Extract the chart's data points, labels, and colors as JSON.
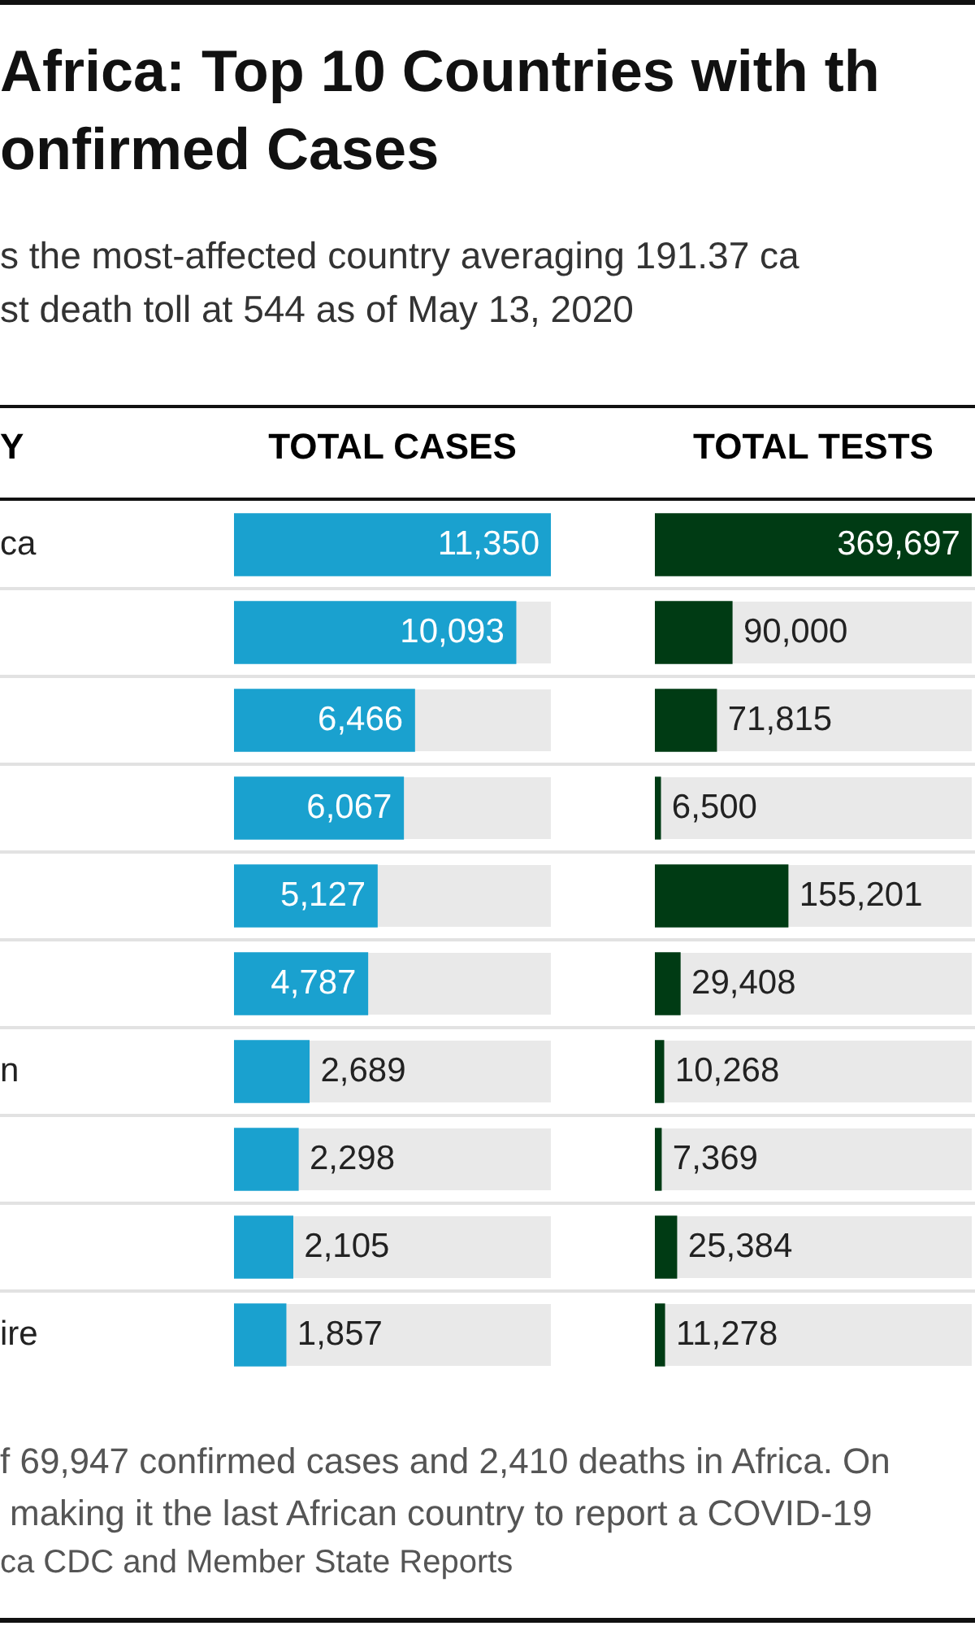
{
  "chart_data": [
    {
      "type": "other",
      "title": "Africa: Top 10 Countries with th\nonfirmed Cases",
      "subtitle": "s the most-affected country averaging 191.37 ca\nst death toll at 544 as of May 13, 2020",
      "annotations": [
        "f 69,947 confirmed cases and 2,410 deaths in Africa. On",
        "making it the last African country to report a COVID-19",
        "ca CDC and Member State Reports"
      ]
    },
    {
      "type": "bar",
      "orientation": "horizontal",
      "title": "TOTAL CASES",
      "ylabel": "Y",
      "categories": [
        "ca",
        null,
        null,
        null,
        null,
        null,
        "n",
        null,
        null,
        "ire"
      ],
      "values": [
        11350,
        10093,
        6466,
        6067,
        5127,
        4787,
        2689,
        2298,
        2105,
        1857
      ],
      "value_labels": [
        "11,350",
        "10,093",
        "6,466",
        "6,067",
        "5,127",
        "4,787",
        "2,689",
        "2,298",
        "2,105",
        "1,857"
      ],
      "color": "#1aa1cf"
    },
    {
      "type": "bar",
      "orientation": "horizontal",
      "title": "TOTAL TESTS",
      "categories": [
        null,
        null,
        null,
        null,
        null,
        null,
        null,
        null,
        null,
        null
      ],
      "values": [
        369697,
        90000,
        71815,
        6500,
        155201,
        29408,
        10268,
        7369,
        25384,
        11278
      ],
      "value_labels": [
        "369,697",
        "90,000",
        "71,815",
        "6,500",
        "155,201",
        "29,408",
        "10,268",
        "7,369",
        "25,384",
        "11,278"
      ],
      "color": "#003b14",
      "tick_labels": false
    }
  ]
}
